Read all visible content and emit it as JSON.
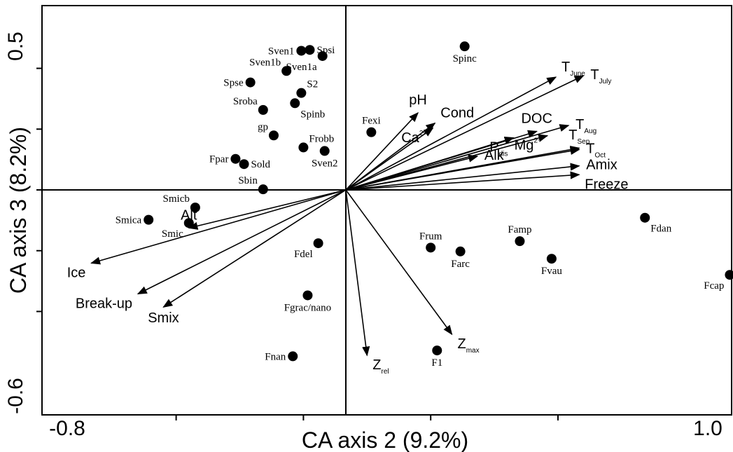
{
  "chart_data": {
    "type": "scatter",
    "xlabel": "CA axis 2 (9.2%)",
    "ylabel": "CA axis 3 (8.2%)",
    "xlim": [
      -0.8,
      1.0
    ],
    "ylim": [
      -0.6,
      0.5
    ],
    "xticks": [
      -0.8,
      1.0
    ],
    "xtick_labels": [
      "-0.8",
      "1.0"
    ],
    "yticks": [
      -0.6,
      0.5
    ],
    "ytick_labels": [
      "-0.6",
      "0.5"
    ],
    "grid": false,
    "sites": [
      {
        "name": "Sven1",
        "x": -0.21,
        "y": 0.475,
        "label_pos": "left"
      },
      {
        "name": "Spsi",
        "x": -0.17,
        "y": 0.478,
        "label_pos": "right"
      },
      {
        "name": "Sven1a",
        "x": -0.11,
        "y": 0.457,
        "label_pos": "below-left"
      },
      {
        "name": "Sven1b",
        "x": -0.28,
        "y": 0.406,
        "label_pos": "above-left"
      },
      {
        "name": "Spinc",
        "x": 0.56,
        "y": 0.49,
        "label_pos": "below"
      },
      {
        "name": "Spse",
        "x": -0.45,
        "y": 0.367,
        "label_pos": "left"
      },
      {
        "name": "S2",
        "x": -0.21,
        "y": 0.331,
        "label_pos": "above-right"
      },
      {
        "name": "Spinb",
        "x": -0.24,
        "y": 0.296,
        "label_pos": "below-right"
      },
      {
        "name": "Sroba",
        "x": -0.39,
        "y": 0.273,
        "label_pos": "above-left"
      },
      {
        "name": "Fexi",
        "x": 0.12,
        "y": 0.197,
        "label_pos": "above"
      },
      {
        "name": "gp",
        "x": -0.34,
        "y": 0.186,
        "label_pos": "above-left"
      },
      {
        "name": "Frobb",
        "x": -0.2,
        "y": 0.145,
        "label_pos": "above-right"
      },
      {
        "name": "Sven2",
        "x": -0.1,
        "y": 0.133,
        "label_pos": "below"
      },
      {
        "name": "Fpar",
        "x": -0.52,
        "y": 0.106,
        "label_pos": "left"
      },
      {
        "name": "Sold",
        "x": -0.48,
        "y": 0.088,
        "label_pos": "right"
      },
      {
        "name": "Sbin",
        "x": -0.39,
        "y": 0.002,
        "label_pos": "above-left"
      },
      {
        "name": "Smicb",
        "x": -0.71,
        "y": -0.06,
        "label_pos": "above-left"
      },
      {
        "name": "Smica",
        "x": -0.93,
        "y": -0.102,
        "label_pos": "left"
      },
      {
        "name": "Smic",
        "x": -0.74,
        "y": -0.113,
        "label_pos": "below-left"
      },
      {
        "name": "Fdel",
        "x": -0.13,
        "y": -0.182,
        "label_pos": "below-left"
      },
      {
        "name": "Frum",
        "x": 0.4,
        "y": -0.197,
        "label_pos": "above"
      },
      {
        "name": "Farc",
        "x": 0.54,
        "y": -0.21,
        "label_pos": "below"
      },
      {
        "name": "Famp",
        "x": 0.82,
        "y": -0.175,
        "label_pos": "above"
      },
      {
        "name": "Fvau",
        "x": 0.97,
        "y": -0.235,
        "label_pos": "below"
      },
      {
        "name": "Fdan",
        "x": 1.41,
        "y": -0.095,
        "label_pos": "below-right"
      },
      {
        "name": "Fcap",
        "x": 1.81,
        "y": -0.29,
        "label_pos": "below-left"
      },
      {
        "name": "Fgrac/nano",
        "x": -0.18,
        "y": -0.36,
        "label_pos": "below"
      },
      {
        "name": "F1",
        "x": 0.43,
        "y": -0.548,
        "label_pos": "below"
      },
      {
        "name": "Fnan",
        "x": -0.25,
        "y": -0.568,
        "label_pos": "left"
      }
    ],
    "environment_vectors": [
      {
        "name": "T",
        "sub": "June",
        "x": 0.99,
        "y": 0.385,
        "label_pos": "above-right"
      },
      {
        "name": "T",
        "sub": "July",
        "x": 1.12,
        "y": 0.39,
        "label_pos": "right"
      },
      {
        "name": "pH",
        "x": 0.34,
        "y": 0.263,
        "label_pos": "above"
      },
      {
        "name": "Cond",
        "x": 0.42,
        "y": 0.228,
        "label_pos": "above-right"
      },
      {
        "name": "Ca",
        "sup": "2+",
        "x": 0.41,
        "y": 0.211,
        "label_pos": "below-left"
      },
      {
        "name": "DOC",
        "x": 0.9,
        "y": 0.2,
        "label_pos": "above"
      },
      {
        "name": "P",
        "sub": "dis",
        "x": 0.79,
        "y": 0.178,
        "label_pos": "below-left"
      },
      {
        "name": "T",
        "sub": "Aug",
        "x": 1.05,
        "y": 0.22,
        "label_pos": "right"
      },
      {
        "name": "Mg",
        "sup": "2+",
        "x": 0.95,
        "y": 0.185,
        "label_pos": "below-left"
      },
      {
        "name": "T",
        "sub": "Sep",
        "x": 1.1,
        "y": 0.143,
        "label_pos": "above"
      },
      {
        "name": "Alk",
        "x": 0.62,
        "y": 0.115,
        "label_pos": "right"
      },
      {
        "name": "T",
        "sub": "Oct",
        "x": 1.1,
        "y": 0.138,
        "label_pos": "right"
      },
      {
        "name": "Amix",
        "x": 1.1,
        "y": 0.082,
        "label_pos": "right"
      },
      {
        "name": "Freeze",
        "x": 1.1,
        "y": 0.052,
        "label_pos": "below-right"
      },
      {
        "name": "Alt",
        "x": -0.74,
        "y": -0.13,
        "label_pos": "above"
      },
      {
        "name": "Ice",
        "x": -1.2,
        "y": -0.25,
        "label_pos": "below-left"
      },
      {
        "name": "Break-up",
        "x": -0.98,
        "y": -0.355,
        "label_pos": "below-left"
      },
      {
        "name": "Smix",
        "x": -0.86,
        "y": -0.4,
        "label_pos": "below"
      },
      {
        "name": "Z",
        "sub": "rel",
        "x": 0.1,
        "y": -0.565,
        "label_pos": "below-right"
      },
      {
        "name": "Z",
        "sub": "max",
        "x": 0.5,
        "y": -0.493,
        "label_pos": "below-right"
      }
    ]
  }
}
